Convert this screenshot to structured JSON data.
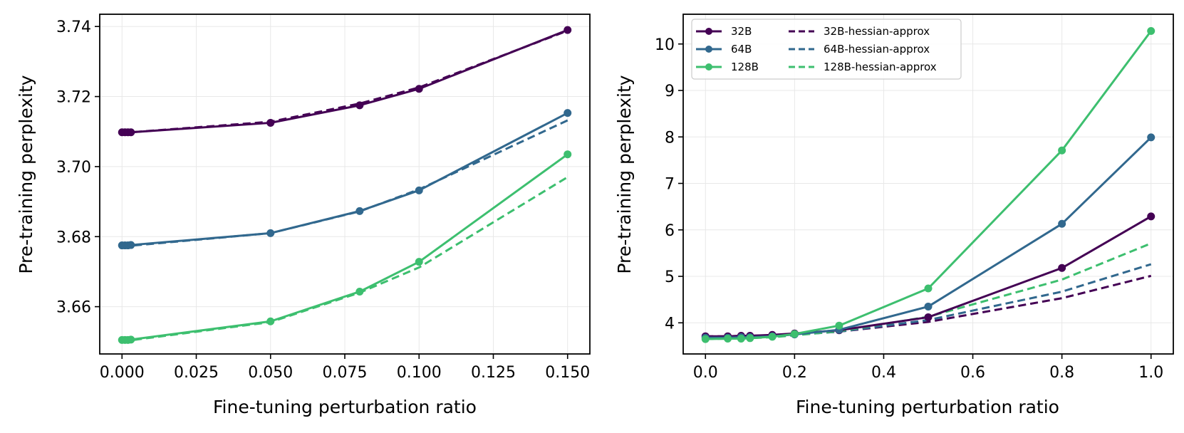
{
  "colors": {
    "32B": "#440154",
    "64B": "#31688e",
    "128B": "#3dbf6f",
    "grid": "#e8e8e8",
    "axis": "#000000"
  },
  "chart_data": [
    {
      "type": "line",
      "title": "",
      "xlabel": "Fine-tuning perturbation ratio",
      "ylabel": "Pre-training perplexity",
      "xlim": [
        -0.0075,
        0.1575
      ],
      "ylim": [
        3.6465,
        3.7435
      ],
      "xticks": [
        0.0,
        0.025,
        0.05,
        0.075,
        0.1,
        0.125,
        0.15
      ],
      "xtick_labels": [
        "0.000",
        "0.025",
        "0.050",
        "0.075",
        "0.100",
        "0.125",
        "0.150"
      ],
      "yticks": [
        3.66,
        3.68,
        3.7,
        3.72,
        3.74
      ],
      "ytick_labels": [
        "3.66",
        "3.68",
        "3.70",
        "3.72",
        "3.74"
      ],
      "grid": true,
      "legend": null,
      "x": [
        0.0,
        0.001,
        0.002,
        0.003,
        0.05,
        0.08,
        0.1,
        0.15
      ],
      "series": [
        {
          "name": "32B",
          "color_key": "32B",
          "style": "solid",
          "markers": true,
          "values": [
            3.7098,
            3.7098,
            3.7098,
            3.7098,
            3.7125,
            3.7175,
            3.7222,
            3.739
          ]
        },
        {
          "name": "32B-hessian-approx",
          "color_key": "32B",
          "style": "dashed",
          "markers": false,
          "values": [
            3.7097,
            3.7097,
            3.7097,
            3.7098,
            3.7128,
            3.718,
            3.7226,
            3.7388
          ]
        },
        {
          "name": "64B",
          "color_key": "64B",
          "style": "solid",
          "markers": true,
          "values": [
            3.6775,
            3.6775,
            3.6775,
            3.6776,
            3.681,
            3.6873,
            3.6932,
            3.7153
          ]
        },
        {
          "name": "64B-hessian-approx",
          "color_key": "64B",
          "style": "dashed",
          "markers": false,
          "values": [
            3.6773,
            3.6773,
            3.6773,
            3.6774,
            3.681,
            3.6872,
            3.6935,
            3.7132
          ]
        },
        {
          "name": "128B",
          "color_key": "128B",
          "style": "solid",
          "markers": true,
          "values": [
            3.6505,
            3.6505,
            3.6505,
            3.6506,
            3.6558,
            3.6643,
            3.6728,
            3.7035
          ]
        },
        {
          "name": "128B-hessian-approx",
          "color_key": "128B",
          "style": "dashed",
          "markers": false,
          "values": [
            3.6503,
            3.6503,
            3.6503,
            3.6504,
            3.6556,
            3.664,
            3.6712,
            3.697
          ]
        }
      ]
    },
    {
      "type": "line",
      "title": "",
      "xlabel": "Fine-tuning perturbation ratio",
      "ylabel": "Pre-training perplexity",
      "xlim": [
        -0.05,
        1.05
      ],
      "ylim": [
        3.33,
        10.64
      ],
      "xticks": [
        0.0,
        0.2,
        0.4,
        0.6,
        0.8,
        1.0
      ],
      "xtick_labels": [
        "0.0",
        "0.2",
        "0.4",
        "0.6",
        "0.8",
        "1.0"
      ],
      "yticks": [
        4,
        5,
        6,
        7,
        8,
        9,
        10
      ],
      "ytick_labels": [
        "4",
        "5",
        "6",
        "7",
        "8",
        "9",
        "10"
      ],
      "grid": true,
      "legend": "top-left",
      "legend_columns": 2,
      "x": [
        0.0,
        0.05,
        0.08,
        0.1,
        0.15,
        0.2,
        0.3,
        0.5,
        0.8,
        1.0
      ],
      "series": [
        {
          "name": "32B",
          "color_key": "32B",
          "style": "solid",
          "markers": true,
          "values": [
            3.71,
            3.71,
            3.72,
            3.72,
            3.74,
            3.77,
            3.84,
            4.12,
            5.18,
            6.29
          ]
        },
        {
          "name": "64B",
          "color_key": "64B",
          "style": "solid",
          "markers": true,
          "values": [
            3.68,
            3.68,
            3.69,
            3.69,
            3.71,
            3.75,
            3.85,
            4.35,
            6.13,
            7.99
          ]
        },
        {
          "name": "128B",
          "color_key": "128B",
          "style": "solid",
          "markers": true,
          "values": [
            3.65,
            3.66,
            3.66,
            3.67,
            3.7,
            3.76,
            3.94,
            4.74,
            7.71,
            10.28
          ]
        },
        {
          "name": "32B-hessian-approx",
          "color_key": "32B",
          "style": "dashed",
          "markers": false,
          "values": [
            3.71,
            3.71,
            3.72,
            3.72,
            3.73,
            3.75,
            3.81,
            4.02,
            4.53,
            5.01
          ]
        },
        {
          "name": "64B-hessian-approx",
          "color_key": "64B",
          "style": "dashed",
          "markers": false,
          "values": [
            3.68,
            3.68,
            3.69,
            3.69,
            3.71,
            3.74,
            3.81,
            4.06,
            4.67,
            5.26
          ]
        },
        {
          "name": "128B-hessian-approx",
          "color_key": "128B",
          "style": "dashed",
          "markers": false,
          "values": [
            3.65,
            3.66,
            3.66,
            3.67,
            3.69,
            3.73,
            3.82,
            4.13,
            4.93,
            5.71
          ]
        }
      ]
    }
  ]
}
